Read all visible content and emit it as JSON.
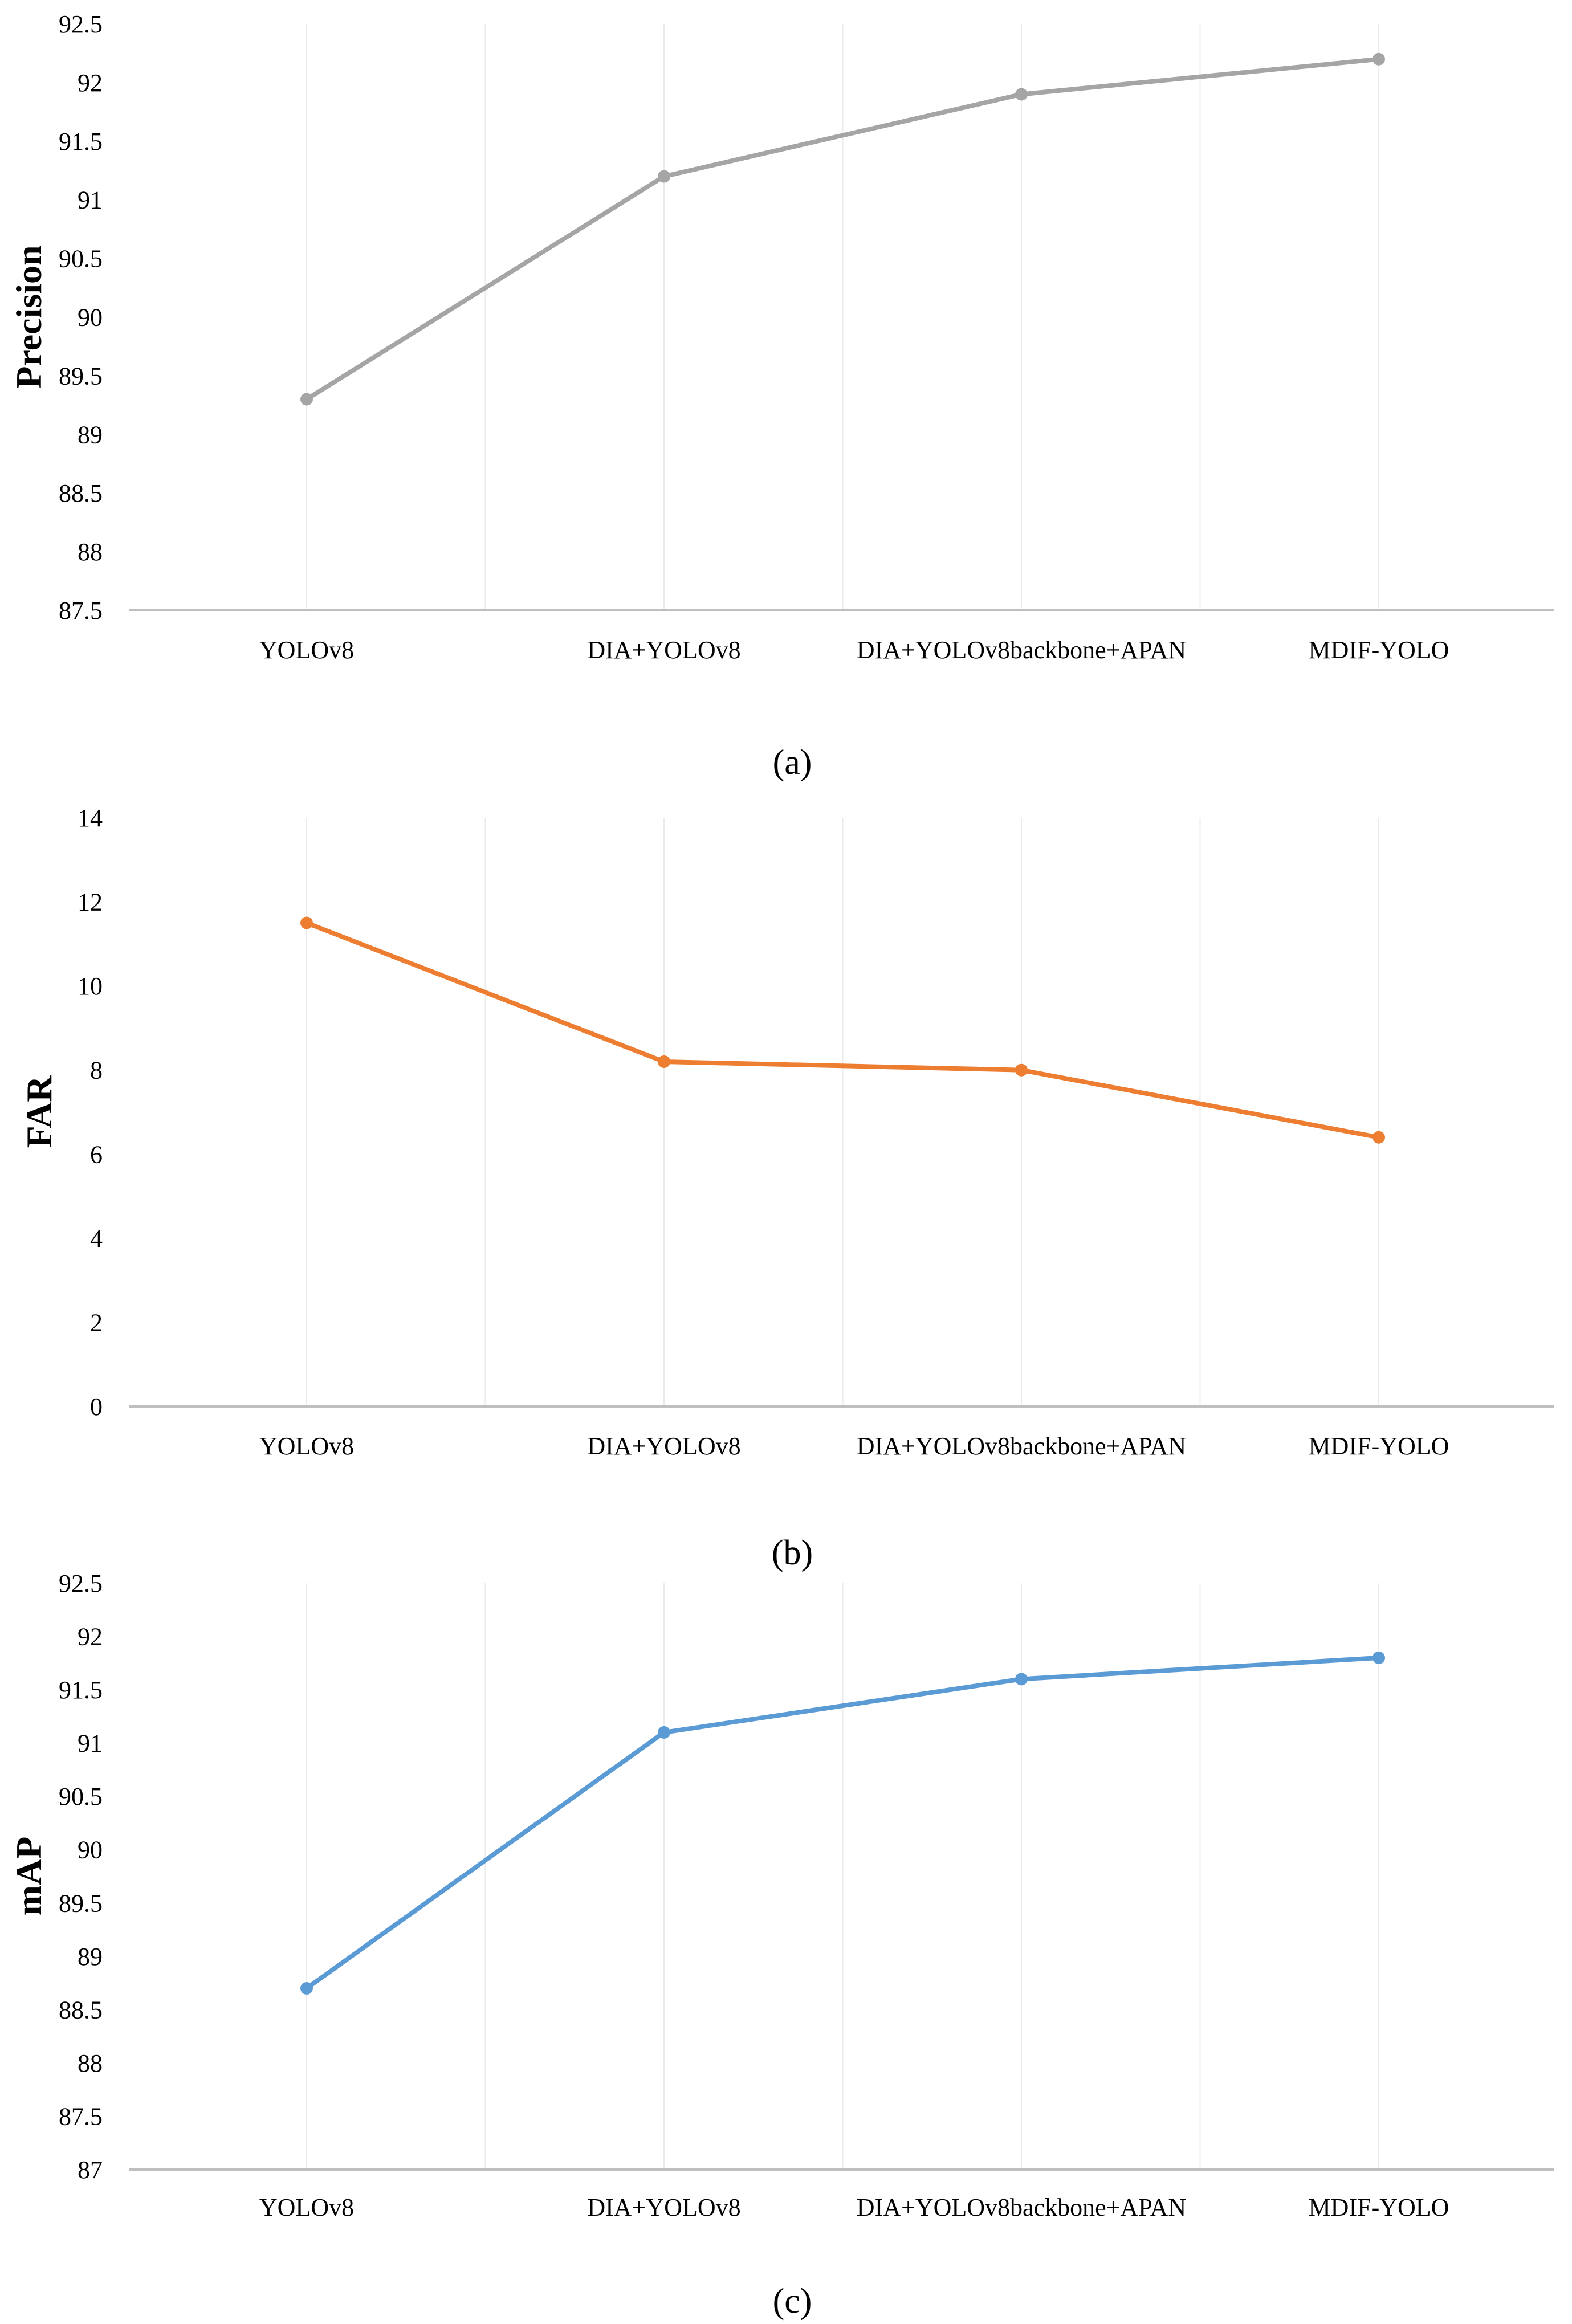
{
  "chart_data": [
    {
      "type": "line",
      "panel_label": "(a)",
      "ylabel": "Precision",
      "categories": [
        "YOLOv8",
        "DIA+YOLOv8",
        "DIA+YOLOv8backbone+APAN",
        "MDIF-YOLO"
      ],
      "values": [
        89.3,
        91.2,
        91.9,
        92.2
      ],
      "ylim": [
        87.5,
        92.5
      ],
      "yticks": [
        "87.5",
        "88",
        "88.5",
        "89",
        "89.5",
        "90",
        "90.5",
        "91",
        "91.5",
        "92",
        "92.5"
      ],
      "color": "#a5a5a5"
    },
    {
      "type": "line",
      "panel_label": "(b)",
      "ylabel": "FAR",
      "categories": [
        "YOLOv8",
        "DIA+YOLOv8",
        "DIA+YOLOv8backbone+APAN",
        "MDIF-YOLO"
      ],
      "values": [
        11.5,
        8.2,
        8.0,
        6.4
      ],
      "ylim": [
        0,
        14
      ],
      "yticks": [
        "0",
        "2",
        "4",
        "6",
        "8",
        "10",
        "12",
        "14"
      ],
      "color": "#ed7d31"
    },
    {
      "type": "line",
      "panel_label": "(c)",
      "ylabel": "mAP",
      "categories": [
        "YOLOv8",
        "DIA+YOLOv8",
        "DIA+YOLOv8backbone+APAN",
        "MDIF-YOLO"
      ],
      "values": [
        88.7,
        91.1,
        91.6,
        91.8
      ],
      "ylim": [
        87,
        92.5
      ],
      "yticks": [
        "87",
        "87.5",
        "88",
        "88.5",
        "89",
        "89.5",
        "90",
        "90.5",
        "91",
        "91.5",
        "92",
        "92.5"
      ],
      "color": "#5b9bd5"
    }
  ]
}
